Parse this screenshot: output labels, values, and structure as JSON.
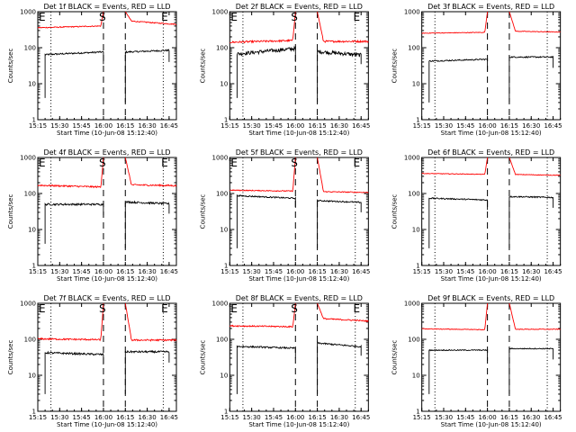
{
  "figure": {
    "panel_grid": "3x3"
  },
  "chart_data": [
    {
      "id": "det1f",
      "type": "line",
      "title": "Det 1f BLACK = Events, RED = LLD",
      "xlabel": "Start Time (10-Jun-08 15:12:40)",
      "ylabel": "Counts/sec",
      "xlim": [
        "15:15",
        "16:50"
      ],
      "ylim": [
        1,
        1000
      ],
      "yscale": "log",
      "x_tick_labels": [
        "15:15",
        "15:30",
        "15:45",
        "16:00",
        "16:15",
        "16:30",
        "16:45"
      ],
      "y_tick_labels": [
        "1",
        "10",
        "100",
        "1000"
      ],
      "markers": [
        {
          "label": "E",
          "time": "15:15"
        },
        {
          "label": "S",
          "time": "16:00"
        },
        {
          "label": "E",
          "time": "16:39"
        }
      ],
      "dotted_lines_time": [
        "15:24",
        "16:41"
      ],
      "dashed_lines_time": [
        "16:00",
        "16:15"
      ],
      "series": [
        {
          "name": "Events",
          "color": "#000000",
          "segments": [
            {
              "start": "15:20",
              "end": "16:00",
              "level": 70,
              "noise": 0.05,
              "spike_to": 4,
              "trend": 0.15
            },
            {
              "start": "16:15",
              "end": "16:45",
              "level": 80,
              "noise": 0.05,
              "spike_to": 3,
              "trend": 0.1
            }
          ]
        },
        {
          "name": "LLD",
          "color": "#ff0000",
          "segments": [
            {
              "start": "15:15",
              "end": "16:00",
              "level": 380,
              "noise": 0.03,
              "spike_to": null,
              "trend": 0.1,
              "rise_to": 1000
            },
            {
              "start": "16:15",
              "end": "16:50",
              "level": 500,
              "noise": 0.03,
              "spike_to": null,
              "trend": -0.2,
              "decay_from": 1000
            }
          ]
        }
      ]
    },
    {
      "id": "det2f",
      "type": "line",
      "title": "Det 2f BLACK = Events, RED = LLD",
      "xlabel": "Start Time (10-Jun-08 15:12:40)",
      "ylabel": "Counts/sec",
      "xlim": [
        "15:15",
        "16:50"
      ],
      "ylim": [
        1,
        1000
      ],
      "yscale": "log",
      "x_tick_labels": [
        "15:15",
        "15:30",
        "15:45",
        "16:00",
        "16:15",
        "16:30",
        "16:45"
      ],
      "y_tick_labels": [
        "1",
        "10",
        "100",
        "1000"
      ],
      "markers": [
        {
          "label": "E",
          "time": "15:15"
        },
        {
          "label": "S",
          "time": "16:00"
        },
        {
          "label": "E",
          "time": "16:39"
        }
      ],
      "dotted_lines_time": [
        "15:24",
        "16:41"
      ],
      "dashed_lines_time": [
        "16:00",
        "16:15"
      ],
      "series": [
        {
          "name": "Events",
          "color": "#000000",
          "segments": [
            {
              "start": "15:20",
              "end": "16:00",
              "level": 80,
              "noise": 0.12,
              "spike_to": 4,
              "trend": 0.3
            },
            {
              "start": "16:15",
              "end": "16:45",
              "level": 70,
              "noise": 0.12,
              "spike_to": 3,
              "trend": -0.2
            }
          ]
        },
        {
          "name": "LLD",
          "color": "#ff0000",
          "segments": [
            {
              "start": "15:15",
              "end": "16:00",
              "level": 150,
              "noise": 0.06,
              "spike_to": null,
              "trend": 0.1,
              "rise_to": 1000
            },
            {
              "start": "16:15",
              "end": "16:50",
              "level": 150,
              "noise": 0.06,
              "spike_to": null,
              "trend": 0.0,
              "decay_from": 1000
            }
          ]
        }
      ]
    },
    {
      "id": "det3f",
      "type": "line",
      "title": "Det 3f BLACK = Events, RED = LLD",
      "xlabel": "Start Time (10-Jun-08 15:12:40)",
      "ylabel": "Counts/sec",
      "xlim": [
        "15:15",
        "16:50"
      ],
      "ylim": [
        1,
        1000
      ],
      "yscale": "log",
      "x_tick_labels": [
        "15:15",
        "15:30",
        "15:45",
        "16:00",
        "16:15",
        "16:30",
        "16:45"
      ],
      "y_tick_labels": [
        "1",
        "10",
        "100",
        "1000"
      ],
      "markers": [],
      "dotted_lines_time": [
        "15:24",
        "16:41"
      ],
      "dashed_lines_time": [
        "16:00",
        "16:15"
      ],
      "series": [
        {
          "name": "Events",
          "color": "#000000",
          "segments": [
            {
              "start": "15:20",
              "end": "16:00",
              "level": 45,
              "noise": 0.04,
              "spike_to": 3,
              "trend": 0.1
            },
            {
              "start": "16:15",
              "end": "16:45",
              "level": 55,
              "noise": 0.04,
              "spike_to": 3,
              "trend": 0.0
            }
          ]
        },
        {
          "name": "LLD",
          "color": "#ff0000",
          "segments": [
            {
              "start": "15:15",
              "end": "16:00",
              "level": 260,
              "noise": 0.02,
              "spike_to": null,
              "trend": 0.05,
              "rise_to": 1000
            },
            {
              "start": "16:15",
              "end": "16:50",
              "level": 280,
              "noise": 0.02,
              "spike_to": null,
              "trend": -0.05,
              "decay_from": 1000
            }
          ]
        }
      ]
    },
    {
      "id": "det4f",
      "type": "line",
      "title": "Det 4f BLACK = Events, RED = LLD",
      "xlabel": "Start Time (10-Jun-08 15:12:40)",
      "ylabel": "Counts/sec",
      "xlim": [
        "15:15",
        "16:50"
      ],
      "ylim": [
        1,
        1000
      ],
      "yscale": "log",
      "x_tick_labels": [
        "15:15",
        "15:30",
        "15:45",
        "16:00",
        "16:15",
        "16:30",
        "16:45"
      ],
      "y_tick_labels": [
        "1",
        "10",
        "100",
        "1000"
      ],
      "markers": [
        {
          "label": "E",
          "time": "15:15"
        },
        {
          "label": "S",
          "time": "16:00"
        },
        {
          "label": "E",
          "time": "16:39"
        }
      ],
      "dotted_lines_time": [
        "15:24",
        "16:41"
      ],
      "dashed_lines_time": [
        "16:00",
        "16:15"
      ],
      "series": [
        {
          "name": "Events",
          "color": "#000000",
          "segments": [
            {
              "start": "15:20",
              "end": "16:00",
              "level": 50,
              "noise": 0.06,
              "spike_to": 4,
              "trend": 0.0
            },
            {
              "start": "16:15",
              "end": "16:45",
              "level": 55,
              "noise": 0.06,
              "spike_to": 3,
              "trend": -0.1
            }
          ]
        },
        {
          "name": "LLD",
          "color": "#ff0000",
          "segments": [
            {
              "start": "15:15",
              "end": "16:00",
              "level": 160,
              "noise": 0.05,
              "spike_to": null,
              "trend": -0.1,
              "rise_to": 1000
            },
            {
              "start": "16:15",
              "end": "16:50",
              "level": 170,
              "noise": 0.05,
              "spike_to": null,
              "trend": -0.05,
              "decay_from": 1000
            }
          ]
        }
      ]
    },
    {
      "id": "det5f",
      "type": "line",
      "title": "Det 5f BLACK = Events, RED = LLD",
      "xlabel": "Start Time (10-Jun-08 15:12:40)",
      "ylabel": "Counts/sec",
      "xlim": [
        "15:15",
        "16:50"
      ],
      "ylim": [
        1,
        1000
      ],
      "yscale": "log",
      "x_tick_labels": [
        "15:15",
        "15:30",
        "15:45",
        "16:00",
        "16:15",
        "16:30",
        "16:45"
      ],
      "y_tick_labels": [
        "1",
        "10",
        "100",
        "1000"
      ],
      "markers": [
        {
          "label": "E",
          "time": "15:15"
        },
        {
          "label": "S",
          "time": "16:00"
        },
        {
          "label": "E",
          "time": "16:39"
        }
      ],
      "dotted_lines_time": [
        "15:24",
        "16:41"
      ],
      "dashed_lines_time": [
        "16:00",
        "16:15"
      ],
      "series": [
        {
          "name": "Events",
          "color": "#000000",
          "segments": [
            {
              "start": "15:20",
              "end": "16:00",
              "level": 80,
              "noise": 0.04,
              "spike_to": 3,
              "trend": -0.15
            },
            {
              "start": "16:15",
              "end": "16:45",
              "level": 60,
              "noise": 0.04,
              "spike_to": 3,
              "trend": -0.1
            }
          ]
        },
        {
          "name": "LLD",
          "color": "#ff0000",
          "segments": [
            {
              "start": "15:15",
              "end": "16:00",
              "level": 120,
              "noise": 0.03,
              "spike_to": null,
              "trend": -0.05,
              "rise_to": 1000
            },
            {
              "start": "16:15",
              "end": "16:50",
              "level": 110,
              "noise": 0.03,
              "spike_to": null,
              "trend": -0.05,
              "decay_from": 1000
            }
          ]
        }
      ]
    },
    {
      "id": "det6f",
      "type": "line",
      "title": "Det 6f BLACK = Events, RED = LLD",
      "xlabel": "Start Time (10-Jun-08 15:12:40)",
      "ylabel": "Counts/sec",
      "xlim": [
        "15:15",
        "16:50"
      ],
      "ylim": [
        1,
        1000
      ],
      "yscale": "log",
      "x_tick_labels": [
        "15:15",
        "15:30",
        "15:45",
        "16:00",
        "16:15",
        "16:30",
        "16:45"
      ],
      "y_tick_labels": [
        "1",
        "10",
        "100",
        "1000"
      ],
      "markers": [],
      "dotted_lines_time": [
        "15:24",
        "16:41"
      ],
      "dashed_lines_time": [
        "16:00",
        "16:15"
      ],
      "series": [
        {
          "name": "Events",
          "color": "#000000",
          "segments": [
            {
              "start": "15:20",
              "end": "16:00",
              "level": 70,
              "noise": 0.04,
              "spike_to": 3,
              "trend": -0.1
            },
            {
              "start": "16:15",
              "end": "16:45",
              "level": 80,
              "noise": 0.04,
              "spike_to": 3,
              "trend": -0.05
            }
          ]
        },
        {
          "name": "LLD",
          "color": "#ff0000",
          "segments": [
            {
              "start": "15:15",
              "end": "16:00",
              "level": 350,
              "noise": 0.02,
              "spike_to": null,
              "trend": -0.05,
              "rise_to": 1000
            },
            {
              "start": "16:15",
              "end": "16:50",
              "level": 330,
              "noise": 0.02,
              "spike_to": null,
              "trend": -0.05,
              "decay_from": 1000
            }
          ]
        }
      ]
    },
    {
      "id": "det7f",
      "type": "line",
      "title": "Det 7f BLACK = Events, RED = LLD",
      "xlabel": "Start Time (10-Jun-08 15:12:40)",
      "ylabel": "Counts/sec",
      "xlim": [
        "15:15",
        "16:50"
      ],
      "ylim": [
        1,
        1000
      ],
      "yscale": "log",
      "x_tick_labels": [
        "15:15",
        "15:30",
        "15:45",
        "16:00",
        "16:15",
        "16:30",
        "16:45"
      ],
      "y_tick_labels": [
        "1",
        "10",
        "100",
        "1000"
      ],
      "markers": [
        {
          "label": "E",
          "time": "15:15"
        },
        {
          "label": "S",
          "time": "16:00"
        },
        {
          "label": "E",
          "time": "16:39"
        }
      ],
      "dotted_lines_time": [
        "15:24",
        "16:41"
      ],
      "dashed_lines_time": [
        "16:00",
        "16:15"
      ],
      "series": [
        {
          "name": "Events",
          "color": "#000000",
          "segments": [
            {
              "start": "15:20",
              "end": "16:00",
              "level": 40,
              "noise": 0.06,
              "spike_to": 3,
              "trend": -0.1
            },
            {
              "start": "16:15",
              "end": "16:45",
              "level": 45,
              "noise": 0.06,
              "spike_to": 3,
              "trend": 0.0
            }
          ]
        },
        {
          "name": "LLD",
          "color": "#ff0000",
          "segments": [
            {
              "start": "15:15",
              "end": "16:00",
              "level": 100,
              "noise": 0.05,
              "spike_to": null,
              "trend": -0.05,
              "rise_to": 1000
            },
            {
              "start": "16:15",
              "end": "16:50",
              "level": 95,
              "noise": 0.05,
              "spike_to": null,
              "trend": 0.0,
              "decay_from": 1000
            }
          ]
        }
      ]
    },
    {
      "id": "det8f",
      "type": "line",
      "title": "Det 8f BLACK = Events, RED = LLD",
      "xlabel": "Start Time (10-Jun-08 15:12:40)",
      "ylabel": "Counts/sec",
      "xlim": [
        "15:15",
        "16:50"
      ],
      "ylim": [
        1,
        1000
      ],
      "yscale": "log",
      "x_tick_labels": [
        "15:15",
        "15:30",
        "15:45",
        "16:00",
        "16:15",
        "16:30",
        "16:45"
      ],
      "y_tick_labels": [
        "1",
        "10",
        "100",
        "1000"
      ],
      "markers": [
        {
          "label": "E",
          "time": "15:15"
        },
        {
          "label": "S",
          "time": "16:00"
        },
        {
          "label": "E",
          "time": "16:39"
        }
      ],
      "dotted_lines_time": [
        "15:24",
        "16:41"
      ],
      "dashed_lines_time": [
        "16:00",
        "16:15"
      ],
      "series": [
        {
          "name": "Events",
          "color": "#000000",
          "segments": [
            {
              "start": "15:20",
              "end": "16:00",
              "level": 60,
              "noise": 0.05,
              "spike_to": 3,
              "trend": -0.1
            },
            {
              "start": "16:15",
              "end": "16:45",
              "level": 70,
              "noise": 0.05,
              "spike_to": 3,
              "trend": -0.2
            }
          ]
        },
        {
          "name": "LLD",
          "color": "#ff0000",
          "segments": [
            {
              "start": "15:15",
              "end": "16:00",
              "level": 230,
              "noise": 0.04,
              "spike_to": null,
              "trend": -0.05,
              "rise_to": 1000
            },
            {
              "start": "16:15",
              "end": "16:50",
              "level": 350,
              "noise": 0.04,
              "spike_to": null,
              "trend": -0.15,
              "decay_from": 1000
            }
          ]
        }
      ]
    },
    {
      "id": "det9f",
      "type": "line",
      "title": "Det 9f BLACK = Events, RED = LLD",
      "xlabel": "Start Time (10-Jun-08 15:12:40)",
      "ylabel": "Counts/sec",
      "xlim": [
        "15:15",
        "16:50"
      ],
      "ylim": [
        1,
        1000
      ],
      "yscale": "log",
      "x_tick_labels": [
        "15:15",
        "15:30",
        "15:45",
        "16:00",
        "16:15",
        "16:30",
        "16:45"
      ],
      "y_tick_labels": [
        "1",
        "10",
        "100",
        "1000"
      ],
      "markers": [],
      "dotted_lines_time": [
        "15:24",
        "16:41"
      ],
      "dashed_lines_time": [
        "16:00",
        "16:15"
      ],
      "series": [
        {
          "name": "Events",
          "color": "#000000",
          "segments": [
            {
              "start": "15:20",
              "end": "16:00",
              "level": 50,
              "noise": 0.03,
              "spike_to": 3,
              "trend": 0.0
            },
            {
              "start": "16:15",
              "end": "16:45",
              "level": 55,
              "noise": 0.03,
              "spike_to": 3,
              "trend": 0.0
            }
          ]
        },
        {
          "name": "LLD",
          "color": "#ff0000",
          "segments": [
            {
              "start": "15:15",
              "end": "16:00",
              "level": 190,
              "noise": 0.02,
              "spike_to": null,
              "trend": -0.05,
              "rise_to": 1000
            },
            {
              "start": "16:15",
              "end": "16:50",
              "level": 190,
              "noise": 0.02,
              "spike_to": null,
              "trend": 0.0,
              "decay_from": 1000
            }
          ]
        }
      ]
    }
  ]
}
